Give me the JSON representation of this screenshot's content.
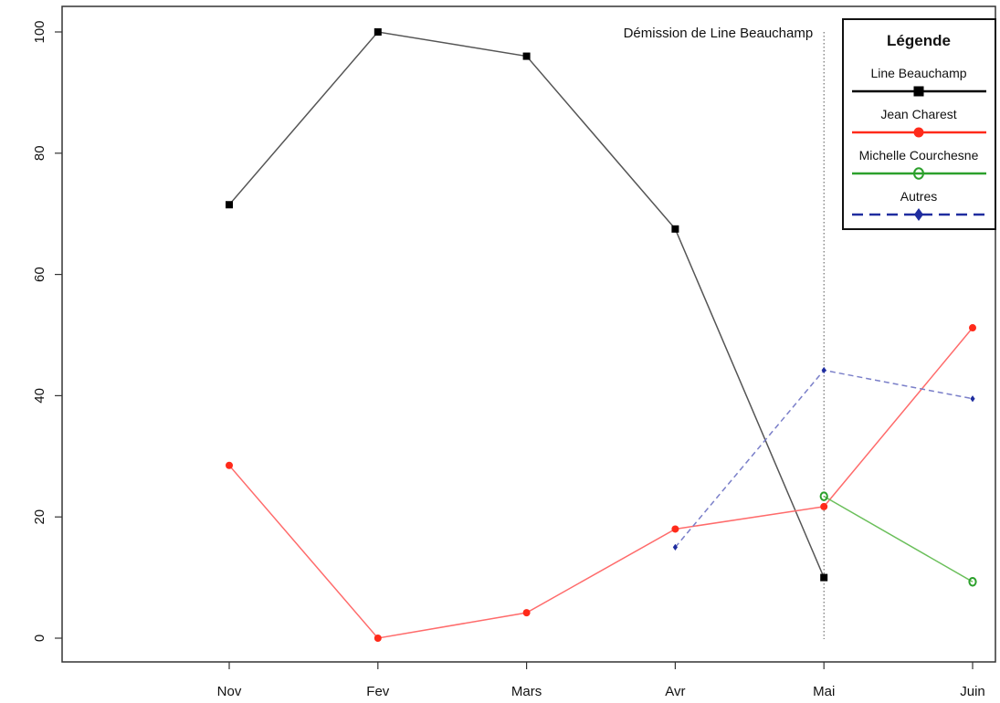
{
  "chart_data": {
    "type": "line",
    "categories": [
      "Nov",
      "Fev",
      "Mars",
      "Avr",
      "Mai",
      "Juin"
    ],
    "ylim": [
      -3,
      104
    ],
    "yticks": [
      0,
      20,
      40,
      60,
      80,
      100
    ],
    "grid": false,
    "legend": {
      "title": "Légende",
      "placement": "top-right"
    },
    "annotation": {
      "text": "Démission de Line Beauchamp",
      "at_category": "Mai"
    },
    "series": [
      {
        "name": "Line Beauchamp",
        "color": "#000000",
        "line_color": "#555555",
        "marker": "square",
        "dash": "solid",
        "values": [
          71.5,
          100,
          96,
          67.5,
          10,
          null
        ]
      },
      {
        "name": "Jean Charest",
        "color": "#ff2a1a",
        "line_color": "#ff6b6b",
        "marker": "circle",
        "dash": "solid",
        "values": [
          28.5,
          0,
          4.2,
          18,
          21.7,
          51.2
        ]
      },
      {
        "name": "Michelle Courchesne",
        "color": "#2ca02c",
        "line_color": "#6abf5a",
        "marker": "open-circle",
        "dash": "solid",
        "values": [
          null,
          null,
          null,
          null,
          23.4,
          9.3
        ]
      },
      {
        "name": "Autres",
        "color": "#1f2d9f",
        "line_color": "#7a7fc9",
        "marker": "diamond",
        "dash": "dashed",
        "values": [
          null,
          null,
          null,
          15,
          44.2,
          39.5
        ]
      }
    ]
  }
}
